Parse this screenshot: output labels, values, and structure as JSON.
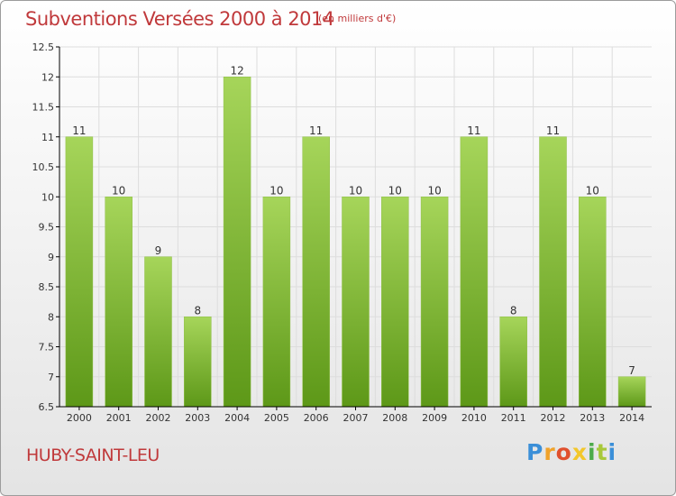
{
  "header": {
    "title": "Subventions Versées 2000 à 2014",
    "unit_note": "(en milliers d'€)"
  },
  "footer": {
    "place_name": "HUBY-SAINT-LEU",
    "logo_text": "Proxiti"
  },
  "colors": {
    "title": "#c0393b",
    "bar_light": "#a6d55a",
    "bar_dark": "#5d9818",
    "axis": "#000000",
    "grid": "#dddddd"
  },
  "chart_data": {
    "type": "bar",
    "title": "Subventions Versées 2000 à 2014",
    "subtitle": "(en milliers d'€)",
    "xlabel": "",
    "ylabel": "",
    "categories": [
      "2000",
      "2001",
      "2002",
      "2003",
      "2004",
      "2005",
      "2006",
      "2007",
      "2008",
      "2009",
      "2010",
      "2011",
      "2012",
      "2013",
      "2014"
    ],
    "values": [
      11,
      10,
      9,
      8,
      12,
      10,
      11,
      10,
      10,
      10,
      11,
      8,
      11,
      10,
      7
    ],
    "value_labels": [
      "11",
      "10",
      "9",
      "8",
      "12",
      "10",
      "11",
      "10",
      "10",
      "10",
      "11",
      "8",
      "11",
      "10",
      "7"
    ],
    "ylim": [
      6.5,
      12.5
    ],
    "yticks": [
      6.5,
      7,
      7.5,
      8,
      8.5,
      9,
      9.5,
      10,
      10.5,
      11,
      11.5,
      12,
      12.5
    ],
    "ytick_labels": [
      "6.5",
      "7",
      "7.5",
      "8",
      "8.5",
      "9",
      "9.5",
      "10",
      "10.5",
      "11",
      "11.5",
      "12",
      "12.5"
    ],
    "grid": true,
    "legend": "none"
  }
}
